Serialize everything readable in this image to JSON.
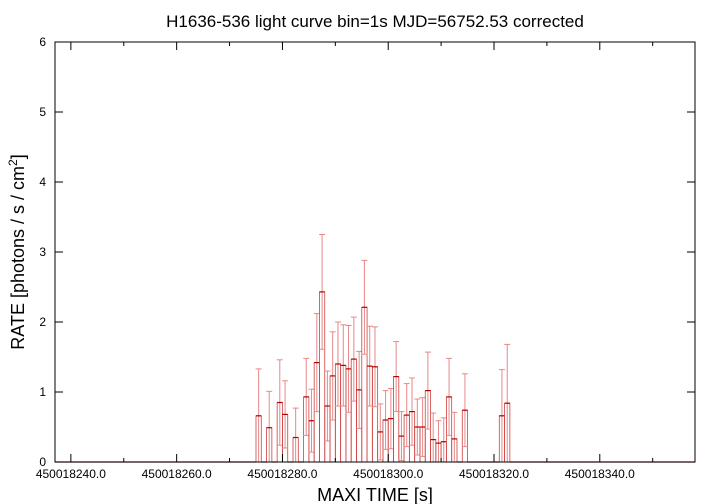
{
  "chart_data": {
    "type": "bar",
    "title": "H1636-536 light curve bin=1s MJD=56752.53 corrected",
    "xlabel": "MAXI TIME [s]",
    "ylabel": "RATE [photons / s / cm",
    "ylabel_sup": "2",
    "ylabel_tail": "]",
    "xlim": [
      450018237.0,
      450018358.0
    ],
    "ylim": [
      0,
      6
    ],
    "x_ticks": [
      {
        "value": 450018240,
        "label": "450018240.0"
      },
      {
        "value": 450018260,
        "label": "450018260.0"
      },
      {
        "value": 450018280,
        "label": "450018280.0"
      },
      {
        "value": 450018300,
        "label": "450018300.0"
      },
      {
        "value": 450018320,
        "label": "450018320.0"
      },
      {
        "value": 450018340,
        "label": "450018340.0"
      }
    ],
    "y_ticks": [
      {
        "value": 0,
        "label": "0"
      },
      {
        "value": 1,
        "label": "1"
      },
      {
        "value": 2,
        "label": "2"
      },
      {
        "value": 3,
        "label": "3"
      },
      {
        "value": 4,
        "label": "4"
      },
      {
        "value": 5,
        "label": "5"
      },
      {
        "value": 6,
        "label": "6"
      }
    ],
    "bin_width": 1,
    "color_bars": "#d04040",
    "color_errors": "#e88888",
    "grid": false,
    "x_start": 450018237.0,
    "values": [
      0,
      0,
      0,
      0,
      0,
      0,
      0,
      0,
      0,
      0,
      0,
      0,
      0,
      0,
      0,
      0,
      0,
      0,
      0,
      0,
      0,
      0,
      0,
      0,
      0,
      0,
      0,
      0,
      0,
      0,
      0,
      0,
      0,
      0,
      0,
      0,
      0,
      0,
      0.66,
      0,
      0.49,
      0,
      0.85,
      0.68,
      0,
      0.35,
      0,
      0.93,
      0.59,
      1.42,
      2.43,
      0.8,
      1.23,
      1.4,
      1.38,
      1.33,
      1.47,
      1.03,
      2.21,
      1.37,
      1.36,
      0.43,
      0.6,
      0.62,
      1.22,
      0.37,
      0.67,
      0.72,
      0.5,
      0.5,
      1.02,
      0.32,
      0.27,
      0.29,
      0.93,
      0.33,
      0,
      0.74,
      0,
      0,
      0,
      0,
      0,
      0,
      0.66,
      0.84,
      0,
      0,
      0,
      0,
      0,
      0,
      0,
      0,
      0,
      0,
      0,
      0,
      0,
      0,
      0,
      0,
      0,
      0,
      0,
      0,
      0,
      0,
      0,
      0,
      0,
      0,
      0,
      0,
      0,
      0,
      0,
      0,
      0,
      0,
      0
    ],
    "errors": [
      0,
      0,
      0,
      0,
      0,
      0,
      0,
      0,
      0,
      0,
      0,
      0,
      0,
      0,
      0,
      0,
      0,
      0,
      0,
      0,
      0,
      0,
      0,
      0,
      0,
      0,
      0,
      0,
      0,
      0,
      0,
      0,
      0,
      0,
      0,
      0,
      0,
      0,
      0.67,
      0,
      0.52,
      0,
      0.61,
      0.48,
      0,
      0.42,
      0,
      0.55,
      0.45,
      0.7,
      0.82,
      0.5,
      0.63,
      0.6,
      0.58,
      0.62,
      0.6,
      0.55,
      0.67,
      0.57,
      0.57,
      0.4,
      0.42,
      0.43,
      0.5,
      0.35,
      0.45,
      0.48,
      0.4,
      0.42,
      0.55,
      0.38,
      0.32,
      0.34,
      0.55,
      0.38,
      0,
      0.52,
      0,
      0,
      0,
      0,
      0,
      0,
      0.66,
      0.84,
      0,
      0,
      0,
      0,
      0,
      0,
      0,
      0,
      0,
      0,
      0,
      0,
      0,
      0,
      0,
      0,
      0,
      0,
      0,
      0,
      0,
      0,
      0,
      0,
      0,
      0,
      0,
      0,
      0,
      0,
      0,
      0,
      0,
      0,
      0
    ]
  }
}
